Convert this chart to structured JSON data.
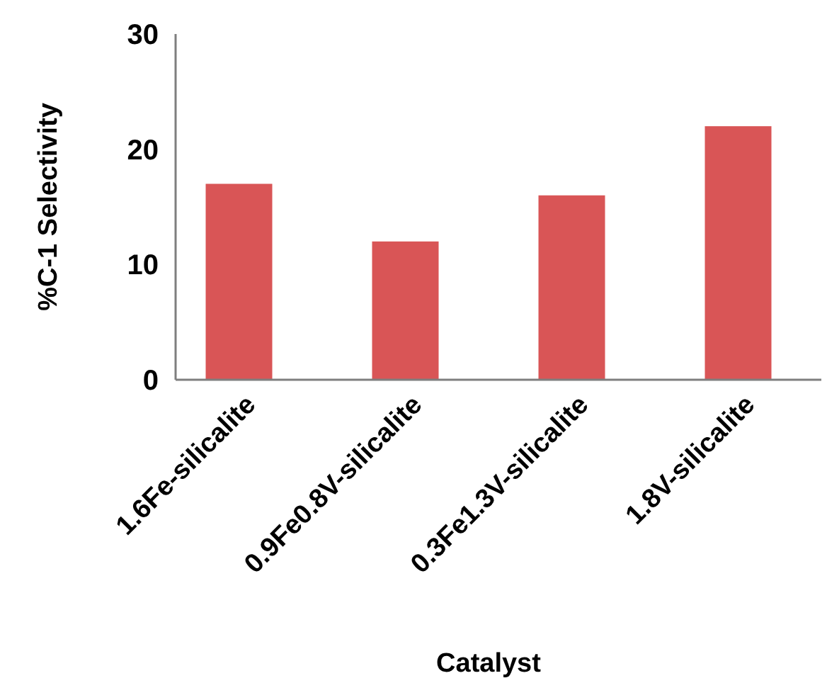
{
  "chart_data": {
    "type": "bar",
    "xlabel": "Catalyst",
    "ylabel": "%C-1 Selectivity",
    "categories": [
      "1.6Fe-silicalite",
      "0.9Fe0.8V-silicalite",
      "0.3Fe1.3V-silicalite",
      "1.8V-silicalite"
    ],
    "values": [
      17,
      12,
      16,
      22
    ],
    "color": "#d95556",
    "ylim": [
      0,
      30
    ],
    "yticks": [
      0,
      10,
      20,
      30
    ],
    "grid": false
  }
}
